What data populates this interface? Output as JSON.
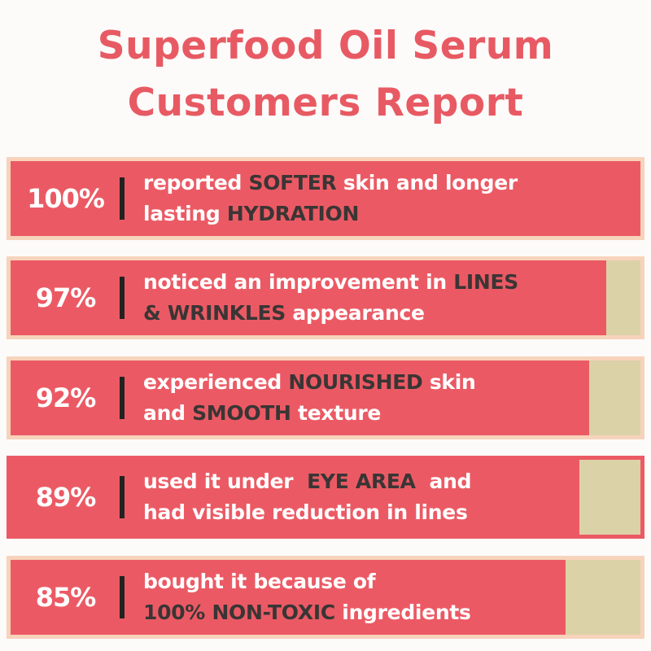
{
  "title": {
    "line1": "Superfood Oil Serum",
    "line2": "Customers Report"
  },
  "colors": {
    "title": "#e85a63",
    "bar_fill": "#eb5a64",
    "bar_track": "#dcd2a8",
    "border": "#f7d3bb",
    "emphasis_text": "#3a3535"
  },
  "chart_data": {
    "type": "bar",
    "orientation": "horizontal",
    "unit": "%",
    "categories": [
      "reported SOFTER skin and longer lasting HYDRATION",
      "noticed an improvement in LINES & WRINKLES appearance",
      "experienced NOURISHED skin and SMOOTH texture",
      "used it under EYE AREA and had visible reduction in lines",
      "bought it because of 100% NON-TOXIC ingredients"
    ],
    "values": [
      100,
      97,
      92,
      89,
      85
    ],
    "xlim": [
      0,
      100
    ]
  },
  "rows": [
    {
      "label": "100%",
      "value": 100,
      "lines": [
        [
          {
            "t": "reported ",
            "em": false
          },
          {
            "t": "SOFTER",
            "em": true
          },
          {
            "t": " skin and longer",
            "em": false
          }
        ],
        [
          {
            "t": "lasting ",
            "em": false
          },
          {
            "t": "HYDRATION",
            "em": true
          }
        ]
      ]
    },
    {
      "label": "97%",
      "value": 97,
      "lines": [
        [
          {
            "t": "noticed an improvement in ",
            "em": false
          },
          {
            "t": "LINES",
            "em": true
          }
        ],
        [
          {
            "t": "& WRINKLES",
            "em": true
          },
          {
            "t": " appearance",
            "em": false
          }
        ]
      ]
    },
    {
      "label": "92%",
      "value": 92,
      "lines": [
        [
          {
            "t": "experienced ",
            "em": false
          },
          {
            "t": "NOURISHED",
            "em": true
          },
          {
            "t": " skin",
            "em": false
          }
        ],
        [
          {
            "t": "and ",
            "em": false
          },
          {
            "t": "SMOOTH",
            "em": true
          },
          {
            "t": " texture",
            "em": false
          }
        ]
      ]
    },
    {
      "label": "89%",
      "value": 89,
      "lines": [
        [
          {
            "t": "used it under  ",
            "em": false
          },
          {
            "t": "EYE AREA",
            "em": true
          },
          {
            "t": "  and",
            "em": false
          }
        ],
        [
          {
            "t": "had visible reduction in lines",
            "em": false
          }
        ]
      ]
    },
    {
      "label": "85%",
      "value": 85,
      "lines": [
        [
          {
            "t": "bought it because of",
            "em": false
          }
        ],
        [
          {
            "t": "100% NON-TOXIC",
            "em": true
          },
          {
            "t": " ingredients",
            "em": false
          }
        ]
      ]
    }
  ]
}
